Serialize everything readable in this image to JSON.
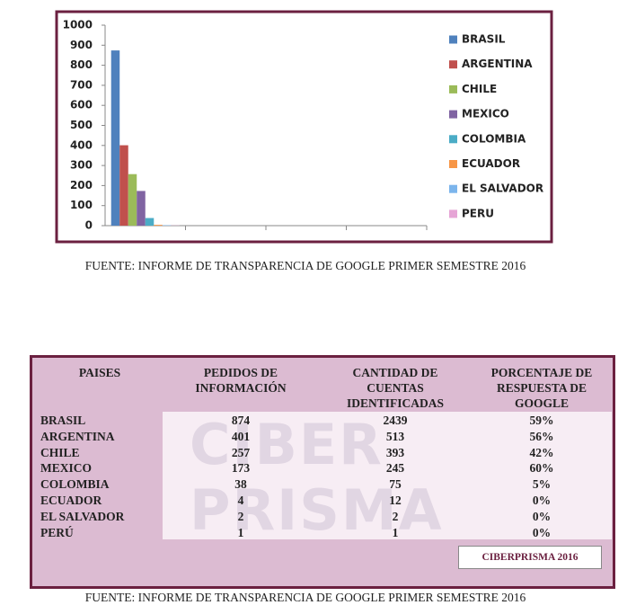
{
  "chart_data": {
    "type": "bar",
    "categories": [
      null,
      null,
      null,
      null
    ],
    "series": [
      {
        "name": "BRASIL",
        "color": "#4f81bd",
        "values": [
          874,
          null,
          null,
          null
        ]
      },
      {
        "name": "ARGENTINA",
        "color": "#c0504d",
        "values": [
          401,
          null,
          null,
          null
        ]
      },
      {
        "name": "CHILE",
        "color": "#9bbb59",
        "values": [
          257,
          null,
          null,
          null
        ]
      },
      {
        "name": "MEXICO",
        "color": "#8064a2",
        "values": [
          173,
          null,
          null,
          null
        ]
      },
      {
        "name": "COLOMBIA",
        "color": "#4bacc6",
        "values": [
          38,
          null,
          null,
          null
        ]
      },
      {
        "name": "ECUADOR",
        "color": "#f79646",
        "values": [
          4,
          null,
          null,
          null
        ]
      },
      {
        "name": "EL SALVADOR",
        "color": "#7cb5ec",
        "values": [
          2,
          null,
          null,
          null
        ]
      },
      {
        "name": "PERU",
        "color": "#e6a5d6",
        "values": [
          1,
          null,
          null,
          null
        ]
      }
    ],
    "ylim": [
      0,
      1000
    ],
    "yticks": [
      0,
      100,
      200,
      300,
      400,
      500,
      600,
      700,
      800,
      900,
      1000
    ],
    "grid": false,
    "legend": "right"
  },
  "caption_top": "FUENTE: INFORME DE TRANSPARENCIA DE GOOGLE PRIMER SEMESTRE 2016",
  "watermark": "CIBER PRISMA",
  "table": {
    "header": [
      "PAISES",
      "PEDIDOS DE INFORMACIÓN",
      "CANTIDAD DE CUENTAS IDENTIFICADAS",
      "PORCENTAJE DE RESPUESTA DE GOOGLE"
    ],
    "rows": [
      [
        "BRASIL",
        "874",
        "2439",
        "59%"
      ],
      [
        "ARGENTINA",
        "401",
        "513",
        "56%"
      ],
      [
        "CHILE",
        "257",
        "393",
        "42%"
      ],
      [
        "MEXICO",
        "173",
        "245",
        "60%"
      ],
      [
        "COLOMBIA",
        "38",
        "75",
        "5%"
      ],
      [
        "ECUADOR",
        "4",
        "12",
        "0%"
      ],
      [
        "EL SALVADOR",
        "2",
        "2",
        "0%"
      ],
      [
        "PERÚ",
        "1",
        "1",
        "0%"
      ]
    ],
    "badge": "CIBERPRISMA 2016"
  },
  "caption_bottom": "FUENTE: INFORME DE TRANSPARENCIA DE GOOGLE PRIMER SEMESTRE 2016"
}
